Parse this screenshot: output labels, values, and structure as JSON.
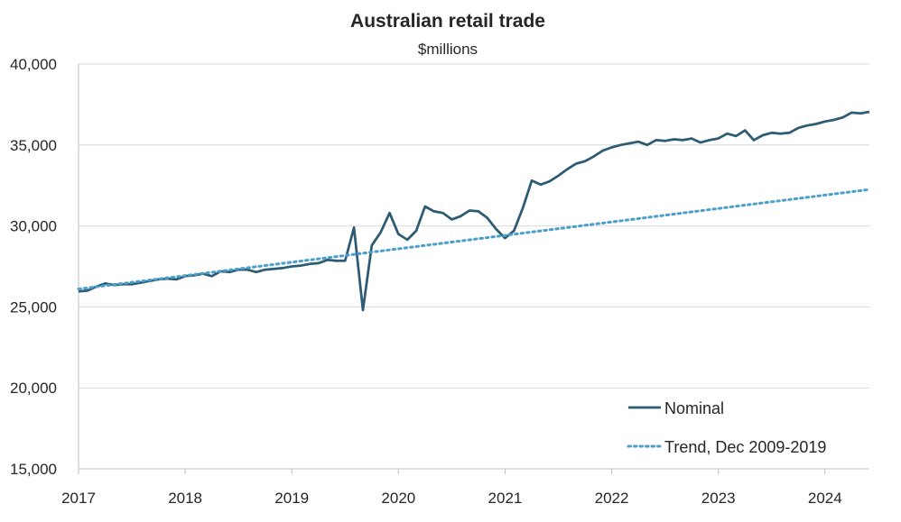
{
  "chart_data": {
    "type": "line",
    "title": "Australian retail trade",
    "subtitle": "$millions",
    "xlabel": "",
    "ylabel": "",
    "xlim": [
      2017.0,
      2024.4167
    ],
    "ylim": [
      15000,
      40000
    ],
    "y_ticks": [
      15000,
      20000,
      25000,
      30000,
      35000,
      40000
    ],
    "y_tick_labels": [
      "15,000",
      "20,000",
      "25,000",
      "30,000",
      "35,000",
      "40,000"
    ],
    "x_ticks": [
      2017,
      2018,
      2019,
      2020,
      2021,
      2022,
      2023,
      2024
    ],
    "x_tick_labels": [
      "2017",
      "2018",
      "2019",
      "2020",
      "2021",
      "2022",
      "2023",
      "2024"
    ],
    "grid": "horizontal",
    "legend_position": "bottom-right",
    "colors": {
      "nominal": "#2e5b74",
      "trend": "#4c9fcb",
      "grid": "#d9d9d9",
      "axis": "#bfbfbf"
    },
    "series": [
      {
        "name": "Nominal",
        "style": "solid",
        "x_start": 2017.0,
        "x_step": 0.08333,
        "values": [
          25950,
          26000,
          26250,
          26450,
          26350,
          26400,
          26400,
          26500,
          26600,
          26700,
          26750,
          26700,
          26900,
          26950,
          27050,
          26900,
          27200,
          27150,
          27300,
          27300,
          27150,
          27300,
          27350,
          27400,
          27500,
          27550,
          27650,
          27700,
          27900,
          27850,
          27850,
          29900,
          24800,
          28800,
          29600,
          30800,
          29500,
          29150,
          29700,
          31200,
          30900,
          30800,
          30400,
          30600,
          30950,
          30900,
          30500,
          29800,
          29250,
          29700,
          31100,
          32800,
          32550,
          32750,
          33100,
          33500,
          33850,
          34000,
          34300,
          34650,
          34850,
          35000,
          35100,
          35200,
          35000,
          35300,
          35250,
          35350,
          35300,
          35400,
          35150,
          35300,
          35400,
          35700,
          35550,
          35900,
          35300,
          35600,
          35750,
          35700,
          35750,
          36050,
          36200,
          36300,
          36450,
          36550,
          36700,
          37000,
          36950,
          37050
        ]
      },
      {
        "name": "Trend, Dec 2009-2019",
        "style": "dotted",
        "x": [
          2017.0,
          2024.4167
        ],
        "values": [
          26100,
          32250
        ]
      }
    ]
  }
}
